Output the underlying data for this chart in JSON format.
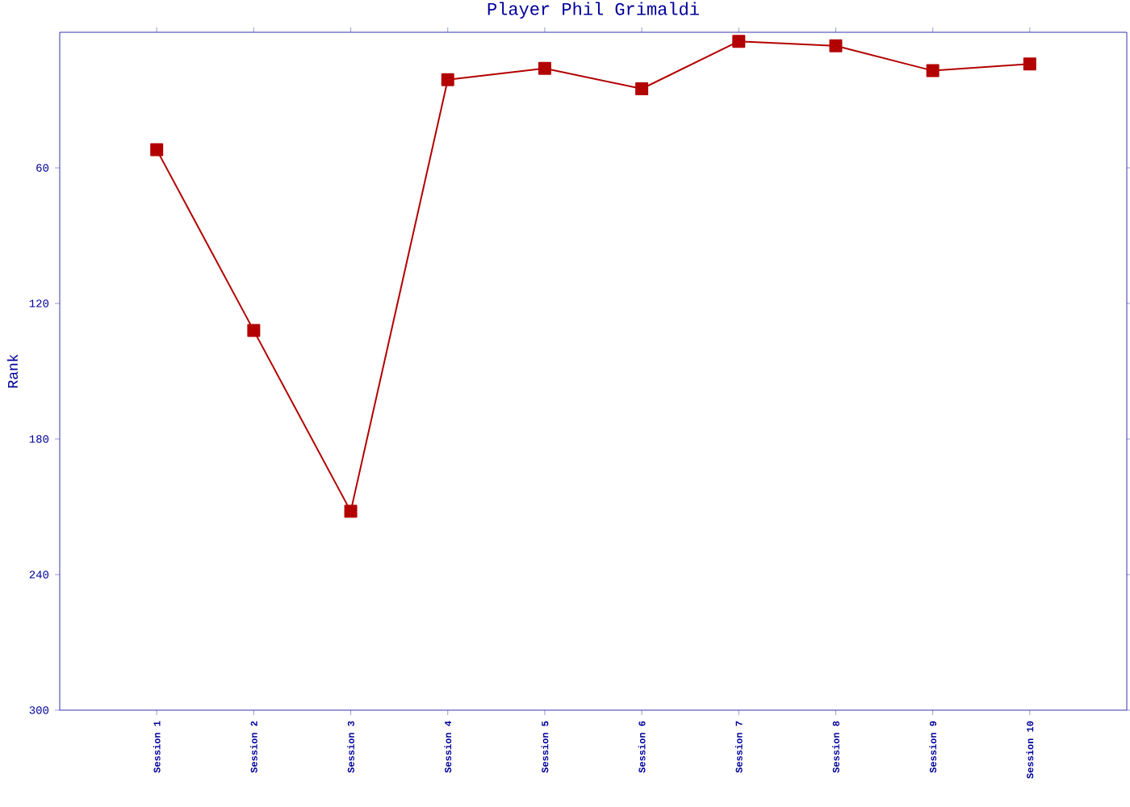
{
  "chart_data": {
    "type": "line",
    "title": "Player Phil Grimaldi",
    "ylabel": "Rank",
    "categories": [
      "Session 1",
      "Session 2",
      "Session 3",
      "Session 4",
      "Session 5",
      "Session 6",
      "Session 7",
      "Session 8",
      "Session 9",
      "Session 10"
    ],
    "series": [
      {
        "color": "#b30000",
        "values": [
          52,
          132,
          212,
          21,
          16,
          25,
          4,
          6,
          17,
          14
        ]
      }
    ],
    "ylim": [
      300,
      0
    ],
    "yticks": [
      60,
      120,
      180,
      240,
      300
    ],
    "marker": "square",
    "grid": false
  }
}
